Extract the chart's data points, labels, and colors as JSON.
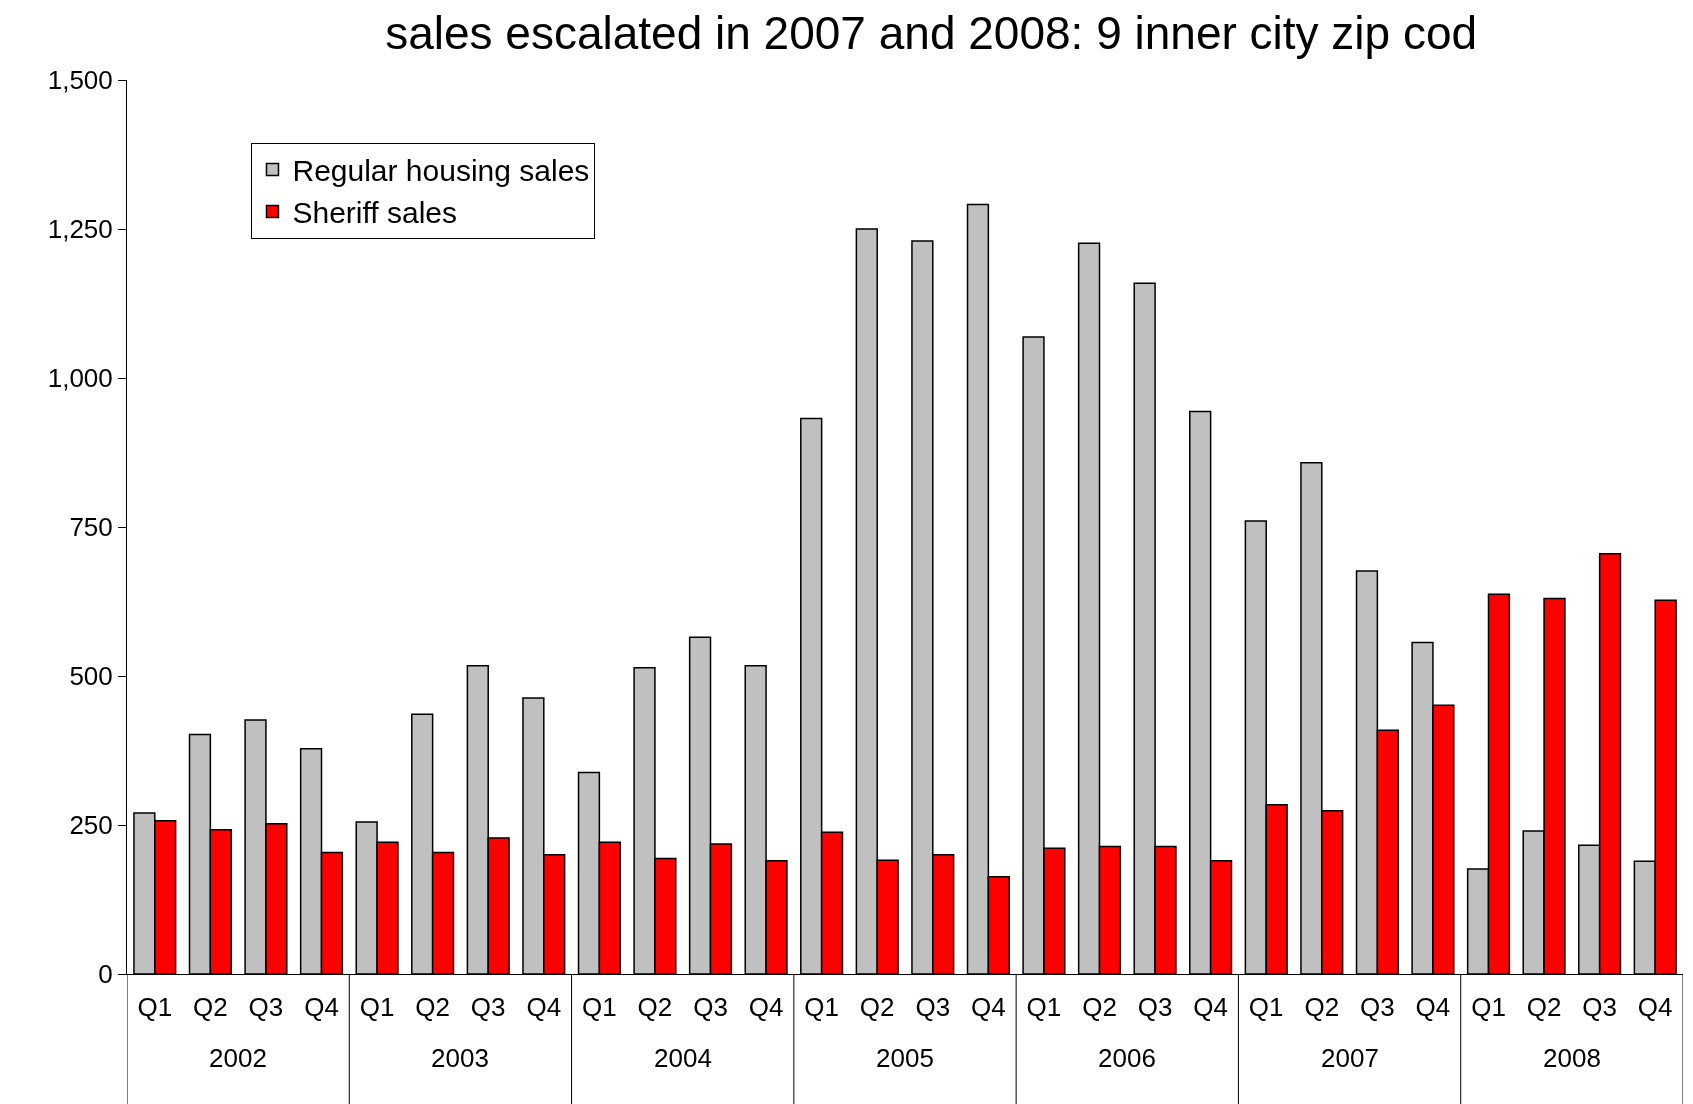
{
  "chart_data": {
    "type": "bar",
    "title": "sales escalated in 2007 and 2008: 9 inner city zip cod",
    "categories": [
      "Q1",
      "Q2",
      "Q3",
      "Q4",
      "Q1",
      "Q2",
      "Q3",
      "Q4",
      "Q1",
      "Q2",
      "Q3",
      "Q4",
      "Q1",
      "Q2",
      "Q3",
      "Q4",
      "Q1",
      "Q2",
      "Q3",
      "Q4",
      "Q1",
      "Q2",
      "Q3",
      "Q4",
      "Q1",
      "Q2",
      "Q3",
      "Q4"
    ],
    "annotations": [
      "2002",
      "2003",
      "2004",
      "2005",
      "2006",
      "2007",
      "2008"
    ],
    "series": [
      {
        "name": "Regular housing sales",
        "color": "#c0c0c0",
        "values": [
          270,
          402,
          426,
          378,
          255,
          436,
          517,
          463,
          338,
          514,
          565,
          517,
          932,
          1250,
          1230,
          1291,
          1069,
          1226,
          1159,
          944,
          760,
          858,
          676,
          556,
          176,
          240,
          216,
          189
        ]
      },
      {
        "name": "Sheriff sales",
        "color": "#ff0000",
        "values": [
          257,
          242,
          252,
          204,
          221,
          204,
          228,
          200,
          221,
          194,
          218,
          190,
          238,
          191,
          200,
          163,
          211,
          214,
          214,
          190,
          284,
          274,
          409,
          451,
          637,
          630,
          705,
          627
        ]
      }
    ],
    "ylim": [
      0,
      1500
    ],
    "yticks": [
      {
        "value": 0,
        "label": "0"
      },
      {
        "value": 250,
        "label": "250"
      },
      {
        "value": 500,
        "label": "500"
      },
      {
        "value": 750,
        "label": "750"
      },
      {
        "value": 1000,
        "label": "1,000"
      },
      {
        "value": 1250,
        "label": "1,250"
      },
      {
        "value": 1500,
        "label": "1,500"
      }
    ],
    "grid": false,
    "legend": "top left"
  }
}
